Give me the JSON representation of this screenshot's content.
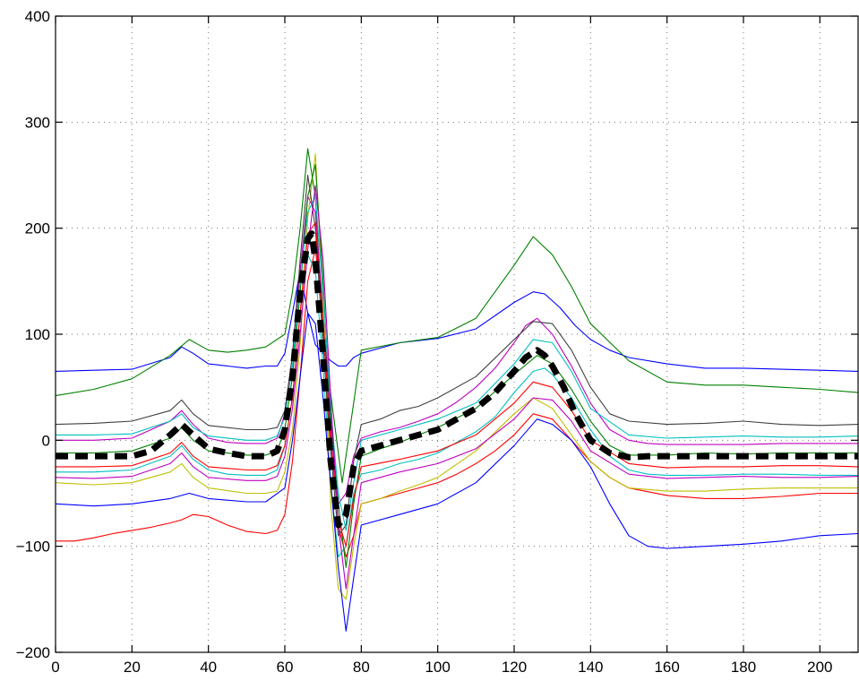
{
  "chart_data": {
    "type": "line",
    "xlim": [
      0,
      210
    ],
    "ylim": [
      -200,
      400
    ],
    "x_ticks": [
      0,
      20,
      40,
      60,
      80,
      100,
      120,
      140,
      160,
      180,
      200
    ],
    "y_ticks": [
      -200,
      -100,
      0,
      100,
      200,
      300,
      400
    ],
    "x_tick_labels": [
      "0",
      "20",
      "40",
      "60",
      "80",
      "100",
      "120",
      "140",
      "160",
      "180",
      "200"
    ],
    "y_tick_labels": [
      "−200",
      "−100",
      "0",
      "100",
      "200",
      "300",
      "400"
    ],
    "grid": true,
    "legend": "none",
    "trace_colors": [
      "#0000ff",
      "#008000",
      "#ff0000",
      "#00bfbf",
      "#bf00bf",
      "#bfbf00",
      "#404040"
    ],
    "mean_color": "#000000",
    "series": [
      {
        "style": "dashed-thick",
        "x": [
          0,
          10,
          20,
          25,
          30,
          33,
          36,
          40,
          45,
          50,
          55,
          58,
          60,
          62,
          64,
          66,
          67,
          68,
          70,
          72,
          74,
          76,
          78,
          80,
          85,
          90,
          95,
          100,
          105,
          110,
          115,
          120,
          123,
          126,
          128,
          130,
          133,
          136,
          140,
          145,
          150,
          155,
          160,
          170,
          180,
          190,
          200,
          210
        ],
        "values": [
          -15,
          -15,
          -15,
          -10,
          5,
          15,
          5,
          -8,
          -12,
          -15,
          -15,
          -10,
          10,
          60,
          140,
          190,
          195,
          170,
          80,
          -20,
          -80,
          -70,
          -25,
          -10,
          -5,
          0,
          5,
          10,
          20,
          30,
          45,
          65,
          78,
          85,
          80,
          70,
          50,
          25,
          0,
          -12,
          -16,
          -15,
          -15,
          -15,
          -15,
          -15,
          -15,
          -15
        ]
      },
      {
        "style": "trace",
        "x": [
          0,
          10,
          20,
          30,
          33,
          36,
          40,
          50,
          55,
          58,
          60,
          62,
          64,
          66,
          68,
          70,
          72,
          74,
          76,
          78,
          80,
          90,
          100,
          110,
          120,
          125,
          128,
          132,
          136,
          140,
          145,
          150,
          160,
          170,
          180,
          190,
          200,
          210
        ],
        "values": [
          65,
          66,
          67,
          78,
          88,
          82,
          72,
          68,
          70,
          70,
          82,
          120,
          160,
          120,
          90,
          82,
          75,
          70,
          70,
          78,
          82,
          92,
          96,
          105,
          130,
          140,
          138,
          125,
          108,
          95,
          85,
          78,
          72,
          68,
          68,
          67,
          66,
          65
        ]
      },
      {
        "style": "trace",
        "x": [
          0,
          10,
          20,
          30,
          35,
          40,
          45,
          50,
          55,
          60,
          62,
          64,
          66,
          68,
          70,
          75,
          80,
          90,
          100,
          110,
          120,
          125,
          130,
          135,
          140,
          150,
          160,
          170,
          180,
          190,
          200,
          210
        ],
        "values": [
          42,
          48,
          58,
          80,
          95,
          85,
          83,
          85,
          88,
          100,
          140,
          200,
          275,
          230,
          100,
          -40,
          85,
          92,
          97,
          115,
          165,
          192,
          175,
          145,
          110,
          75,
          55,
          52,
          52,
          50,
          48,
          45
        ]
      },
      {
        "style": "trace",
        "x": [
          0,
          5,
          10,
          15,
          20,
          25,
          30,
          33,
          36,
          40,
          45,
          50,
          55,
          58,
          60,
          62,
          64,
          66,
          68,
          70,
          72,
          74,
          76,
          78,
          80,
          85,
          90,
          95,
          100,
          105,
          110,
          115,
          120,
          125,
          130,
          135,
          140,
          145,
          150,
          160,
          170,
          180,
          190,
          200,
          210
        ],
        "values": [
          -95,
          -95,
          -92,
          -88,
          -85,
          -82,
          -78,
          -75,
          -70,
          -72,
          -80,
          -86,
          -88,
          -85,
          -70,
          -20,
          60,
          150,
          180,
          120,
          20,
          -80,
          -110,
          -90,
          -60,
          -55,
          -50,
          -45,
          -40,
          -32,
          -22,
          -10,
          5,
          25,
          20,
          0,
          -20,
          -35,
          -45,
          -52,
          -55,
          -55,
          -53,
          -50,
          -50
        ]
      },
      {
        "style": "trace",
        "x": [
          0,
          10,
          20,
          30,
          33,
          36,
          40,
          45,
          50,
          55,
          58,
          60,
          62,
          64,
          66,
          68,
          70,
          72,
          74,
          76,
          78,
          80,
          85,
          90,
          95,
          100,
          105,
          110,
          115,
          120,
          125,
          128,
          130,
          135,
          140,
          145,
          150,
          155,
          160,
          170,
          180,
          190,
          200,
          210
        ],
        "values": [
          -30,
          -30,
          -28,
          -15,
          -5,
          -18,
          -28,
          -32,
          -33,
          -33,
          -28,
          -5,
          40,
          120,
          175,
          160,
          70,
          -40,
          -110,
          -100,
          -50,
          -32,
          -28,
          -22,
          -18,
          -12,
          -2,
          8,
          22,
          45,
          65,
          68,
          62,
          40,
          10,
          -15,
          -28,
          -32,
          -33,
          -33,
          -32,
          -32,
          -33,
          -33
        ]
      },
      {
        "style": "trace",
        "x": [
          0,
          10,
          20,
          30,
          33,
          36,
          40,
          45,
          50,
          55,
          58,
          60,
          62,
          64,
          66,
          68,
          70,
          72,
          74,
          76,
          78,
          80,
          85,
          90,
          95,
          100,
          105,
          110,
          115,
          120,
          123,
          126,
          130,
          135,
          140,
          145,
          150,
          155,
          160,
          170,
          180,
          190,
          200,
          210
        ],
        "values": [
          0,
          0,
          2,
          18,
          28,
          15,
          2,
          -2,
          -3,
          -3,
          2,
          25,
          80,
          160,
          230,
          215,
          120,
          10,
          -60,
          -50,
          -15,
          2,
          8,
          12,
          18,
          25,
          36,
          50,
          68,
          92,
          108,
          115,
          100,
          70,
          35,
          10,
          0,
          -3,
          -4,
          -4,
          -4,
          -3,
          -3,
          -3
        ]
      },
      {
        "style": "trace",
        "x": [
          0,
          10,
          20,
          30,
          33,
          36,
          40,
          50,
          55,
          58,
          60,
          62,
          64,
          66,
          68,
          70,
          72,
          74,
          76,
          78,
          80,
          85,
          90,
          95,
          100,
          110,
          120,
          125,
          130,
          135,
          140,
          145,
          150,
          160,
          170,
          180,
          190,
          200,
          210
        ],
        "values": [
          -40,
          -42,
          -40,
          -30,
          -22,
          -35,
          -45,
          -50,
          -50,
          -48,
          -30,
          10,
          90,
          210,
          270,
          130,
          -60,
          -140,
          -150,
          -100,
          -60,
          -55,
          -48,
          -42,
          -35,
          -10,
          25,
          40,
          30,
          5,
          -20,
          -35,
          -45,
          -48,
          -48,
          -46,
          -45,
          -45,
          -45
        ]
      },
      {
        "style": "trace",
        "x": [
          0,
          10,
          20,
          30,
          33,
          36,
          40,
          50,
          55,
          58,
          60,
          62,
          64,
          66,
          68,
          70,
          72,
          74,
          76,
          78,
          80,
          85,
          90,
          95,
          100,
          110,
          120,
          125,
          130,
          135,
          140,
          145,
          150,
          160,
          170,
          180,
          190,
          200,
          210
        ],
        "values": [
          15,
          16,
          18,
          28,
          38,
          25,
          14,
          10,
          10,
          12,
          28,
          80,
          170,
          250,
          200,
          90,
          -10,
          -90,
          -80,
          -20,
          15,
          20,
          28,
          32,
          40,
          60,
          95,
          112,
          110,
          85,
          50,
          25,
          18,
          15,
          16,
          18,
          15,
          14,
          15
        ]
      },
      {
        "style": "trace",
        "x": [
          0,
          10,
          20,
          30,
          35,
          40,
          50,
          55,
          60,
          62,
          64,
          66,
          68,
          70,
          72,
          74,
          76,
          78,
          80,
          90,
          100,
          110,
          120,
          126,
          130,
          135,
          140,
          145,
          150,
          155,
          160,
          170,
          180,
          190,
          200,
          210
        ],
        "values": [
          -60,
          -62,
          -60,
          -55,
          -50,
          -55,
          -58,
          -58,
          -45,
          0,
          60,
          120,
          110,
          40,
          -40,
          -120,
          -180,
          -130,
          -80,
          -70,
          -60,
          -40,
          -5,
          20,
          15,
          0,
          -25,
          -60,
          -90,
          -100,
          -102,
          -100,
          -98,
          -95,
          -90,
          -88
        ]
      },
      {
        "style": "trace",
        "x": [
          0,
          10,
          20,
          30,
          33,
          36,
          40,
          50,
          55,
          58,
          60,
          62,
          64,
          66,
          68,
          70,
          72,
          74,
          76,
          78,
          80,
          85,
          90,
          95,
          100,
          110,
          120,
          126,
          130,
          135,
          140,
          145,
          150,
          160,
          170,
          180,
          190,
          200,
          210
        ],
        "values": [
          -12,
          -12,
          -10,
          2,
          12,
          0,
          -10,
          -14,
          -14,
          -10,
          10,
          60,
          140,
          230,
          260,
          150,
          20,
          -60,
          -120,
          -60,
          -15,
          -8,
          -2,
          5,
          12,
          30,
          62,
          80,
          72,
          48,
          18,
          -5,
          -14,
          -14,
          -12,
          -13,
          -12,
          -12,
          -12
        ]
      },
      {
        "style": "trace",
        "x": [
          0,
          10,
          20,
          30,
          33,
          36,
          40,
          50,
          55,
          58,
          60,
          62,
          64,
          66,
          68,
          70,
          72,
          74,
          76,
          78,
          80,
          90,
          100,
          110,
          120,
          125,
          130,
          135,
          140,
          150,
          160,
          170,
          180,
          190,
          200,
          210
        ],
        "values": [
          -25,
          -25,
          -24,
          -12,
          -2,
          -15,
          -25,
          -28,
          -28,
          -24,
          -5,
          40,
          120,
          195,
          205,
          110,
          0,
          -75,
          -100,
          -55,
          -25,
          -18,
          -10,
          5,
          35,
          55,
          50,
          28,
          0,
          -22,
          -26,
          -25,
          -25,
          -24,
          -24,
          -25
        ]
      },
      {
        "style": "trace",
        "x": [
          0,
          10,
          20,
          30,
          33,
          36,
          40,
          50,
          55,
          58,
          60,
          62,
          64,
          66,
          68,
          70,
          72,
          74,
          76,
          78,
          80,
          90,
          100,
          110,
          120,
          125,
          130,
          135,
          140,
          150,
          160,
          170,
          180,
          190,
          200,
          210
        ],
        "values": [
          5,
          5,
          6,
          18,
          25,
          12,
          4,
          0,
          0,
          4,
          22,
          70,
          150,
          215,
          230,
          140,
          30,
          -50,
          -85,
          -40,
          0,
          10,
          20,
          35,
          72,
          95,
          92,
          65,
          30,
          5,
          2,
          3,
          4,
          3,
          3,
          4
        ]
      },
      {
        "style": "trace",
        "x": [
          0,
          10,
          20,
          30,
          33,
          36,
          40,
          50,
          55,
          58,
          60,
          62,
          64,
          66,
          68,
          70,
          72,
          74,
          76,
          78,
          80,
          90,
          100,
          110,
          120,
          125,
          130,
          135,
          140,
          150,
          160,
          170,
          180,
          190,
          200,
          210
        ],
        "values": [
          -35,
          -36,
          -34,
          -22,
          -12,
          -25,
          -35,
          -38,
          -38,
          -34,
          -15,
          30,
          100,
          180,
          240,
          170,
          40,
          -80,
          -140,
          -90,
          -40,
          -30,
          -22,
          -8,
          20,
          40,
          38,
          18,
          -10,
          -32,
          -36,
          -35,
          -34,
          -35,
          -35,
          -34
        ]
      }
    ]
  }
}
